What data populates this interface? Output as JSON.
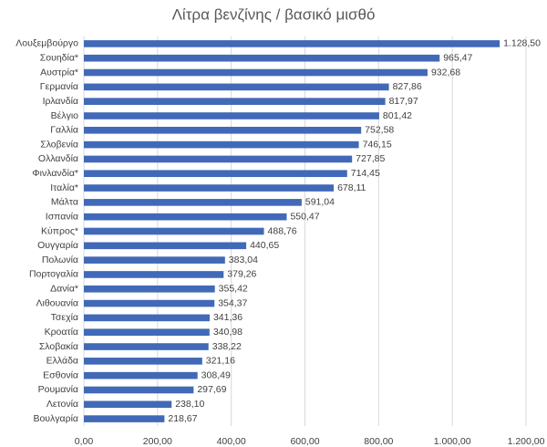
{
  "chart_data": {
    "type": "hbar",
    "title": "Λίτρα βενζίνης / βασικό μισθό",
    "categories": [
      "Λουξεμβούργο",
      "Σουηδία*",
      "Αυστρία*",
      "Γερμανία",
      "Ιρλανδία",
      "Βέλγιο",
      "Γαλλία",
      "Σλοβενία",
      "Ολλανδία",
      "Φινλανδία*",
      "Ιταλία*",
      "Μάλτα",
      "Ισπανία",
      "Κύπρος*",
      "Ουγγαρία",
      "Πολωνία",
      "Πορτογαλία",
      "Δανία*",
      "Λιθουανία",
      "Τσεχία",
      "Κροατία",
      "Σλοβακία",
      "Ελλάδα",
      "Εσθονία",
      "Ρουμανία",
      "Λετονία",
      "Βουλγαρία"
    ],
    "values": [
      1128.5,
      965.47,
      932.68,
      827.86,
      817.97,
      801.42,
      752.58,
      746.15,
      727.85,
      714.45,
      678.11,
      591.04,
      550.47,
      488.76,
      440.65,
      383.04,
      379.26,
      355.42,
      354.37,
      341.36,
      340.98,
      338.22,
      321.16,
      308.49,
      297.69,
      238.1,
      218.67
    ],
    "value_labels": [
      "1.128,50",
      "965,47",
      "932,68",
      "827,86",
      "817,97",
      "801,42",
      "752,58",
      "746,15",
      "727,85",
      "714,45",
      "678,11",
      "591,04",
      "550,47",
      "488,76",
      "440,65",
      "383,04",
      "379,26",
      "355,42",
      "354,37",
      "341,36",
      "340,98",
      "338,22",
      "321,16",
      "308,49",
      "297,69",
      "238,10",
      "218,67"
    ],
    "color": "#4169b8",
    "xlim": [
      0,
      1200
    ],
    "xticks": [
      {
        "value": 0,
        "label": "0,00"
      },
      {
        "value": 200,
        "label": "200,00"
      },
      {
        "value": 400,
        "label": "400,00"
      },
      {
        "value": 600,
        "label": "600,00"
      },
      {
        "value": 800,
        "label": "800,00"
      },
      {
        "value": 1000,
        "label": "1.000,00"
      },
      {
        "value": 1200,
        "label": "1.200,00"
      }
    ],
    "grid": true
  }
}
